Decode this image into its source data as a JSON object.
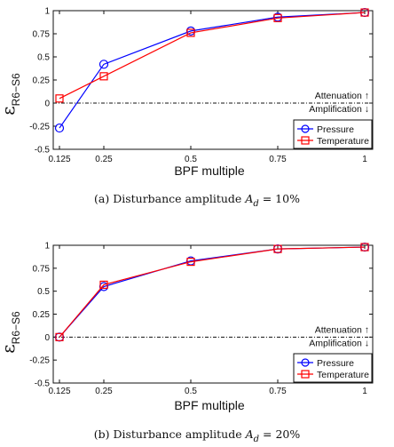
{
  "chart_data": [
    {
      "type": "line",
      "x": [
        0.125,
        0.25,
        0.5,
        0.75,
        1
      ],
      "x_tick_labels": [
        "0.125",
        "0.25",
        "0.5",
        "0.75",
        "1"
      ],
      "y_tick_labels": [
        "-0.5",
        "-0.25",
        "0",
        "0.25",
        "0.5",
        "0.75",
        "1"
      ],
      "xlim": [
        0.125,
        1
      ],
      "ylim": [
        -0.5,
        1
      ],
      "xlabel": "BPF multiple",
      "ylabel_main": "ε",
      "ylabel_sub": "R6−S6",
      "annotation_up": "Attenuation ↑",
      "annotation_down": "Amplification ↓",
      "caption_prefix": "(a)  Disturbance amplitude ",
      "caption_var": "A",
      "caption_sub": "d",
      "caption_suffix": " = 10%",
      "legend_position": "bottom-right",
      "series": [
        {
          "name": "Pressure",
          "color": "#0000ff",
          "marker": "circle",
          "values": [
            -0.27,
            0.42,
            0.78,
            0.93,
            0.98
          ]
        },
        {
          "name": "Temperature",
          "color": "#ff0000",
          "marker": "square",
          "values": [
            0.05,
            0.29,
            0.76,
            0.92,
            0.98
          ]
        }
      ]
    },
    {
      "type": "line",
      "x": [
        0.125,
        0.25,
        0.5,
        0.75,
        1
      ],
      "x_tick_labels": [
        "0.125",
        "0.25",
        "0.5",
        "0.75",
        "1"
      ],
      "y_tick_labels": [
        "-0.5",
        "-0.25",
        "0",
        "0.25",
        "0.5",
        "0.75",
        "1"
      ],
      "xlim": [
        0.125,
        1
      ],
      "ylim": [
        -0.5,
        1
      ],
      "xlabel": "BPF multiple",
      "ylabel_main": "ε",
      "ylabel_sub": "R6−S6",
      "annotation_up": "Attenuation ↑",
      "annotation_down": "Amplification ↓",
      "caption_prefix": "(b)  Disturbance amplitude ",
      "caption_var": "A",
      "caption_sub": "d",
      "caption_suffix": " = 20%",
      "legend_position": "bottom-right",
      "series": [
        {
          "name": "Pressure",
          "color": "#0000ff",
          "marker": "circle",
          "values": [
            0.0,
            0.55,
            0.83,
            0.96,
            0.98
          ]
        },
        {
          "name": "Temperature",
          "color": "#ff0000",
          "marker": "square",
          "values": [
            0.0,
            0.57,
            0.82,
            0.96,
            0.98
          ]
        }
      ]
    }
  ]
}
